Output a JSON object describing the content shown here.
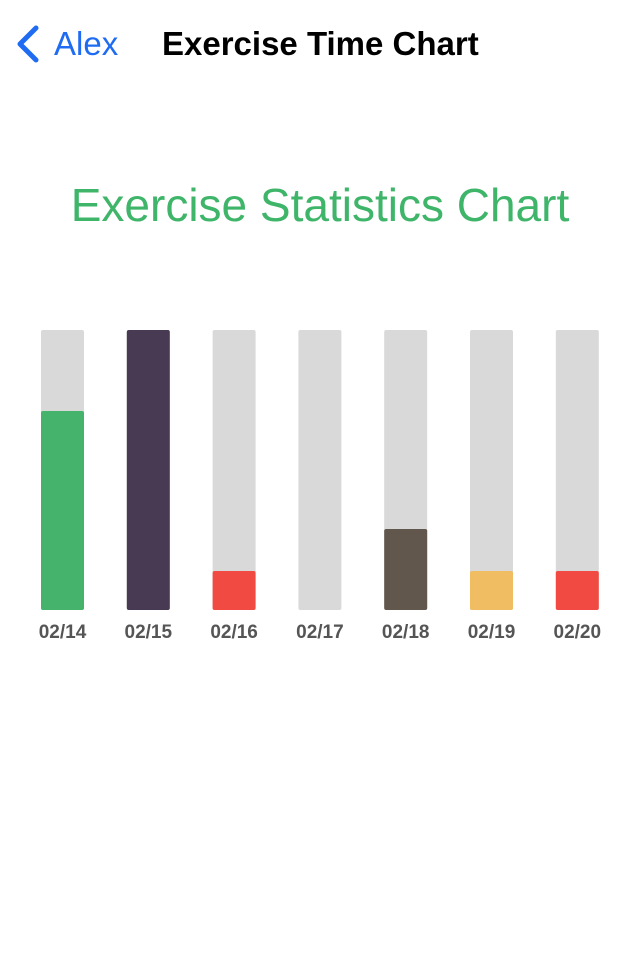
{
  "nav": {
    "back_label": "Alex",
    "title": "Exercise Time Chart"
  },
  "colors": {
    "accent": "#1f6cf2",
    "title_green": "#3fb56a",
    "track": "#d9d9d9"
  },
  "chart_data": {
    "type": "bar",
    "title": "Exercise Statistics Chart",
    "xlabel": "",
    "ylabel": "",
    "ylim": [
      0,
      1
    ],
    "grid": false,
    "categories": [
      "02/14",
      "02/15",
      "02/16",
      "02/17",
      "02/18",
      "02/19",
      "02/20"
    ],
    "values": [
      0.71,
      1.0,
      0.14,
      0.0,
      0.29,
      0.14,
      0.14
    ],
    "bar_colors": [
      "#45b36b",
      "#473a52",
      "#f04a43",
      "#d9d9d9",
      "#62574c",
      "#f0bd63",
      "#f04a43"
    ],
    "track_color": "#d9d9d9"
  }
}
